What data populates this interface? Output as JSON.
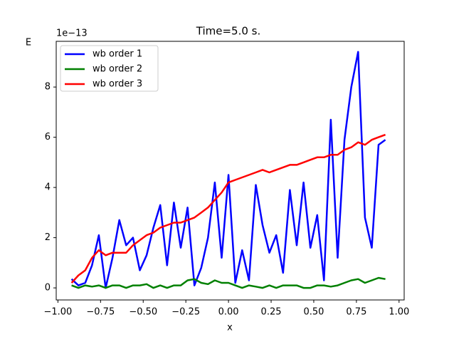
{
  "chart_data": {
    "type": "line",
    "title": "Time=5.0 s.",
    "x_label": "x",
    "y_label": "E",
    "y_offset_text": "1e−13",
    "x": [
      -0.92,
      -0.88,
      -0.84,
      -0.8,
      -0.76,
      -0.72,
      -0.68,
      -0.64,
      -0.6,
      -0.56,
      -0.52,
      -0.48,
      -0.44,
      -0.4,
      -0.36,
      -0.32,
      -0.28,
      -0.24,
      -0.2,
      -0.16,
      -0.12,
      -0.08,
      -0.04,
      0.0,
      0.04,
      0.08,
      0.12,
      0.16,
      0.2,
      0.24,
      0.28,
      0.32,
      0.36,
      0.4,
      0.44,
      0.48,
      0.52,
      0.56,
      0.6,
      0.64,
      0.68,
      0.72,
      0.76,
      0.8,
      0.84,
      0.88,
      0.92
    ],
    "series": [
      {
        "name": "wb order 1",
        "color": "#0000ff",
        "values": [
          0.35,
          0.1,
          0.2,
          0.9,
          2.1,
          0.0,
          1.2,
          2.7,
          1.7,
          2.0,
          0.7,
          1.3,
          2.4,
          3.3,
          0.9,
          3.4,
          1.6,
          3.2,
          0.1,
          0.8,
          2.0,
          4.2,
          1.2,
          4.5,
          0.2,
          1.5,
          0.3,
          4.1,
          2.5,
          1.4,
          2.1,
          0.6,
          3.9,
          1.7,
          4.2,
          1.6,
          2.9,
          0.3,
          6.7,
          1.2,
          5.9,
          8.0,
          9.4,
          2.8,
          1.6,
          5.7,
          5.9
        ]
      },
      {
        "name": "wb order 2",
        "color": "#008000",
        "values": [
          0.1,
          0.0,
          0.1,
          0.05,
          0.1,
          0.0,
          0.1,
          0.1,
          0.0,
          0.1,
          0.1,
          0.15,
          0.0,
          0.1,
          0.0,
          0.1,
          0.1,
          0.3,
          0.35,
          0.2,
          0.15,
          0.3,
          0.2,
          0.2,
          0.1,
          0.0,
          0.1,
          0.05,
          0.0,
          0.1,
          0.0,
          0.1,
          0.1,
          0.1,
          0.0,
          0.0,
          0.1,
          0.1,
          0.05,
          0.1,
          0.2,
          0.3,
          0.35,
          0.2,
          0.3,
          0.4,
          0.35
        ]
      },
      {
        "name": "wb order 3",
        "color": "#ff0000",
        "values": [
          0.2,
          0.5,
          0.7,
          1.2,
          1.5,
          1.3,
          1.4,
          1.4,
          1.4,
          1.7,
          1.9,
          2.1,
          2.2,
          2.4,
          2.5,
          2.6,
          2.6,
          2.7,
          2.8,
          3.0,
          3.2,
          3.5,
          3.8,
          4.2,
          4.3,
          4.4,
          4.5,
          4.6,
          4.7,
          4.6,
          4.7,
          4.8,
          4.9,
          4.9,
          5.0,
          5.1,
          5.2,
          5.2,
          5.3,
          5.3,
          5.5,
          5.6,
          5.8,
          5.7,
          5.9,
          6.0,
          6.1
        ]
      }
    ],
    "xlim": [
      -1.01,
      1.03
    ],
    "ylim": [
      -0.48,
      9.82
    ],
    "xticks": [
      {
        "value": -1.0,
        "label": "−1.00"
      },
      {
        "value": -0.75,
        "label": "−0.75"
      },
      {
        "value": -0.5,
        "label": "−0.50"
      },
      {
        "value": -0.25,
        "label": "−0.25"
      },
      {
        "value": 0,
        "label": "0.00"
      },
      {
        "value": 0.25,
        "label": "0.25"
      },
      {
        "value": 0.5,
        "label": "0.50"
      },
      {
        "value": 0.75,
        "label": "0.75"
      },
      {
        "value": 1.0,
        "label": "1.00"
      }
    ],
    "yticks": [
      0,
      2,
      4,
      6,
      8
    ],
    "legend": "upper left"
  }
}
